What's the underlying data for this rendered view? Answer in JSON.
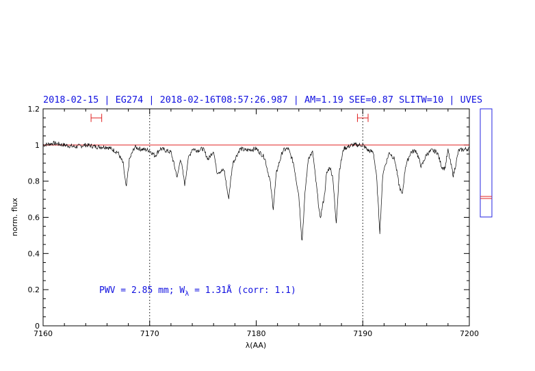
{
  "chart_data": {
    "type": "line",
    "title": "2018-02-15 | EG274 | 2018-02-16T08:57:26.987 | AM=1.19  SEE=0.87  SLITW=10 | UVES",
    "xlabel": "λ(AA)",
    "ylabel": "norm. flux",
    "xlim": [
      7160,
      7200
    ],
    "ylim": [
      0,
      1.2
    ],
    "x_ticks": [
      7160,
      7170,
      7180,
      7190,
      7200
    ],
    "y_ticks": [
      0,
      0.2,
      0.4,
      0.6,
      0.8,
      1,
      1.2
    ],
    "x_tick_labels": [
      "7160",
      "7170",
      "7180",
      "7190",
      "7200"
    ],
    "y_tick_labels": [
      "0",
      "0.2",
      "0.4",
      "0.6",
      "0.8",
      "1",
      "1.2"
    ],
    "continuum_level": 1.0,
    "vertical_markers": [
      7170,
      7190
    ],
    "continuum_windows": [
      {
        "center": 7165.0,
        "halfwidth": 0.5,
        "y": 1.15
      },
      {
        "center": 7190.0,
        "halfwidth": 0.5,
        "y": 1.15
      }
    ],
    "series": [
      {
        "x": [
          7160,
          7161,
          7162,
          7163,
          7164,
          7165,
          7166,
          7167,
          7167.5,
          7167.8,
          7168.1,
          7168.6,
          7169,
          7170,
          7170.5,
          7171,
          7172,
          7172.6,
          7172.9,
          7173.3,
          7173.6,
          7174,
          7174.5,
          7175,
          7175.5,
          7176,
          7176.3,
          7177,
          7177.4,
          7177.8,
          7178.5,
          7179,
          7180,
          7180.8,
          7181.3,
          7181.6,
          7181.9,
          7182.5,
          7183,
          7183.5,
          7184,
          7184.3,
          7184.6,
          7184.9,
          7185.3,
          7185.7,
          7186,
          7186.4,
          7186.6,
          7186.9,
          7187.2,
          7187.5,
          7187.8,
          7188.2,
          7189,
          7190,
          7190.5,
          7191,
          7191.3,
          7191.6,
          7191.9,
          7192.5,
          7193,
          7193.4,
          7193.7,
          7194,
          7194.5,
          7195,
          7195.5,
          7196,
          7196.5,
          7197,
          7197.4,
          7197.7,
          7198,
          7198.5,
          7199,
          7200
        ],
        "values": [
          1.0,
          1.01,
          1.0,
          0.99,
          1.0,
          0.99,
          0.99,
          0.96,
          0.9,
          0.76,
          0.92,
          0.99,
          0.98,
          0.97,
          0.94,
          0.98,
          0.96,
          0.82,
          0.93,
          0.78,
          0.92,
          0.98,
          0.97,
          0.98,
          0.92,
          0.97,
          0.85,
          0.86,
          0.7,
          0.9,
          0.98,
          0.97,
          0.98,
          0.93,
          0.8,
          0.65,
          0.85,
          0.97,
          0.98,
          0.9,
          0.72,
          0.46,
          0.75,
          0.93,
          0.96,
          0.75,
          0.59,
          0.72,
          0.84,
          0.88,
          0.82,
          0.56,
          0.86,
          0.98,
          1.0,
          1.0,
          0.97,
          0.96,
          0.82,
          0.52,
          0.85,
          0.96,
          0.92,
          0.78,
          0.72,
          0.88,
          0.96,
          0.97,
          0.88,
          0.95,
          0.97,
          0.96,
          0.88,
          0.87,
          0.97,
          0.83,
          0.97,
          0.98
        ]
      }
    ],
    "annotation": {
      "text_main": "PWV = 2.85 mm; W",
      "text_sub": "λ",
      "text_tail": " = 1.31Å (corr: 1.1)"
    },
    "side_box": {
      "lines": [
        0.71,
        0.7
      ]
    },
    "colors": {
      "frame": "#000000",
      "spectrum": "#000000",
      "continuum": "#e02020",
      "text": "#1010e0",
      "side_box": "#2020e0"
    }
  }
}
